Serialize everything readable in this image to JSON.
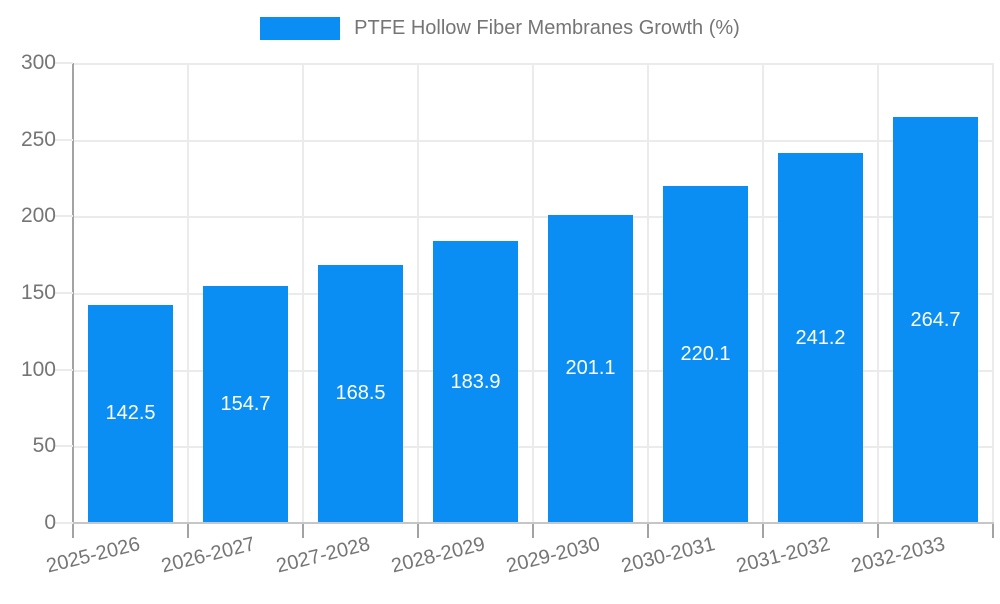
{
  "chart_data": {
    "type": "bar",
    "title": "PTFE Hollow Fiber Membranes Growth (%)",
    "legend": [
      "PTFE Hollow Fiber Membranes Growth (%)"
    ],
    "legend_position": "top-center",
    "categories": [
      "2025-2026",
      "2026-2027",
      "2027-2028",
      "2028-2029",
      "2029-2030",
      "2030-2031",
      "2031-2032",
      "2032-2033"
    ],
    "values": [
      142.5,
      154.7,
      168.5,
      183.9,
      201.1,
      220.1,
      241.2,
      264.7
    ],
    "value_label_decimals": 1,
    "ylim": [
      0,
      300
    ],
    "yticks": [
      0,
      50,
      100,
      150,
      200,
      250,
      300
    ],
    "grid": true,
    "colors": {
      "bar": "#0a8ef4",
      "value_label": "#ffffff",
      "axis_text": "#757575",
      "gridline": "#ebebeb",
      "axis_line_y": "#a3a3a3",
      "axis_line_x": "#c6c6c6"
    }
  }
}
